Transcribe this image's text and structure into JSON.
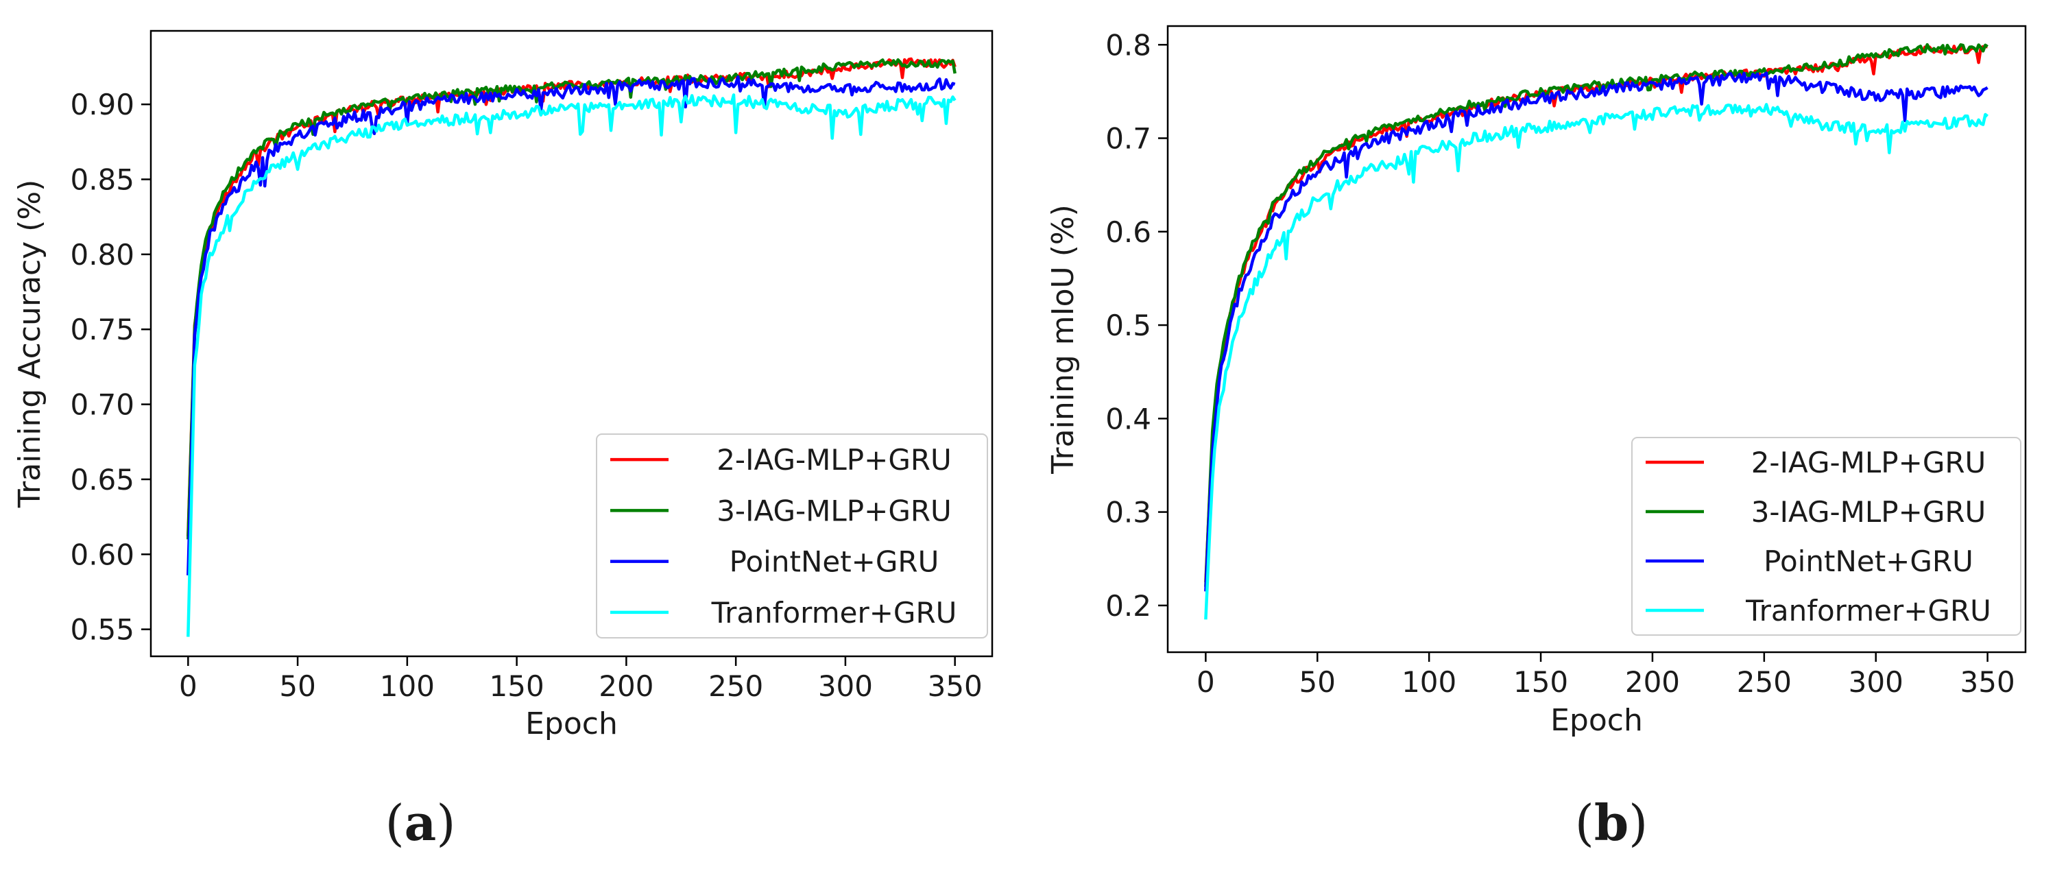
{
  "chart_data": [
    {
      "type": "line",
      "panel_label": "a",
      "panel_label_open": "(",
      "panel_label_close": ")",
      "xlabel": "Epoch",
      "ylabel": "Training Accuracy (%)",
      "xlim": [
        -17,
        367
      ],
      "ylim": [
        0.532,
        0.949
      ],
      "xticks": [
        0,
        50,
        100,
        150,
        200,
        250,
        300,
        350
      ],
      "yticks": [
        0.55,
        0.6,
        0.65,
        0.7,
        0.75,
        0.8,
        0.85,
        0.9
      ],
      "ytick_labels": [
        "0.55",
        "0.60",
        "0.65",
        "0.70",
        "0.75",
        "0.80",
        "0.85",
        "0.90"
      ],
      "legend_position": "lower-right",
      "series": [
        {
          "name": "2-IAG-MLP+GRU",
          "color": "#ff0000",
          "x": [
            0,
            3,
            6,
            10,
            15,
            20,
            30,
            40,
            50,
            60,
            75,
            90,
            100,
            120,
            150,
            175,
            200,
            225,
            250,
            275,
            300,
            325,
            350
          ],
          "y": [
            0.612,
            0.752,
            0.792,
            0.818,
            0.835,
            0.846,
            0.866,
            0.877,
            0.884,
            0.89,
            0.897,
            0.901,
            0.903,
            0.906,
            0.91,
            0.913,
            0.915,
            0.917,
            0.918,
            0.92,
            0.924,
            0.928,
            0.927
          ]
        },
        {
          "name": "3-IAG-MLP+GRU",
          "color": "#008000",
          "x": [
            0,
            3,
            6,
            10,
            15,
            20,
            30,
            40,
            50,
            60,
            75,
            90,
            100,
            120,
            150,
            175,
            200,
            225,
            250,
            275,
            300,
            325,
            350
          ],
          "y": [
            0.61,
            0.75,
            0.795,
            0.82,
            0.838,
            0.85,
            0.868,
            0.879,
            0.886,
            0.892,
            0.898,
            0.902,
            0.904,
            0.907,
            0.911,
            0.913,
            0.915,
            0.917,
            0.918,
            0.922,
            0.926,
            0.928,
            0.927
          ]
        },
        {
          "name": "PointNet+GRU",
          "color": "#0000ff",
          "x": [
            0,
            3,
            6,
            10,
            15,
            20,
            30,
            40,
            50,
            60,
            75,
            90,
            100,
            120,
            150,
            175,
            200,
            225,
            250,
            275,
            300,
            325,
            350
          ],
          "y": [
            0.586,
            0.745,
            0.786,
            0.812,
            0.828,
            0.84,
            0.858,
            0.87,
            0.878,
            0.884,
            0.891,
            0.896,
            0.899,
            0.903,
            0.907,
            0.91,
            0.912,
            0.914,
            0.915,
            0.912,
            0.91,
            0.912,
            0.914
          ]
        },
        {
          "name": "Tranformer+GRU",
          "color": "#00ffff",
          "x": [
            0,
            3,
            6,
            10,
            15,
            20,
            30,
            40,
            50,
            60,
            75,
            90,
            100,
            120,
            150,
            175,
            200,
            225,
            250,
            275,
            300,
            325,
            350
          ],
          "y": [
            0.545,
            0.725,
            0.772,
            0.798,
            0.815,
            0.828,
            0.847,
            0.858,
            0.866,
            0.872,
            0.879,
            0.884,
            0.887,
            0.89,
            0.894,
            0.897,
            0.9,
            0.902,
            0.903,
            0.898,
            0.895,
            0.9,
            0.902
          ]
        }
      ]
    },
    {
      "type": "line",
      "panel_label": "b",
      "panel_label_open": "(",
      "panel_label_close": ")",
      "xlabel": "Epoch",
      "ylabel": "Training mIoU (%)",
      "xlim": [
        -17,
        367
      ],
      "ylim": [
        0.15,
        0.82
      ],
      "xticks": [
        0,
        50,
        100,
        150,
        200,
        250,
        300,
        350
      ],
      "yticks": [
        0.2,
        0.3,
        0.4,
        0.5,
        0.6,
        0.7,
        0.8
      ],
      "ytick_labels": [
        "0.2",
        "0.3",
        "0.4",
        "0.5",
        "0.6",
        "0.7",
        "0.8"
      ],
      "legend_position": "lower-right",
      "series": [
        {
          "name": "2-IAG-MLP+GRU",
          "color": "#ff0000",
          "x": [
            0,
            3,
            6,
            10,
            15,
            20,
            30,
            40,
            50,
            60,
            75,
            90,
            100,
            120,
            150,
            175,
            200,
            225,
            250,
            275,
            300,
            325,
            350
          ],
          "y": [
            0.225,
            0.38,
            0.45,
            0.5,
            0.545,
            0.578,
            0.625,
            0.655,
            0.675,
            0.69,
            0.705,
            0.715,
            0.722,
            0.735,
            0.748,
            0.755,
            0.762,
            0.767,
            0.77,
            0.775,
            0.787,
            0.795,
            0.795
          ]
        },
        {
          "name": "3-IAG-MLP+GRU",
          "color": "#008000",
          "x": [
            0,
            3,
            6,
            10,
            15,
            20,
            30,
            40,
            50,
            60,
            75,
            90,
            100,
            120,
            150,
            175,
            200,
            225,
            250,
            275,
            300,
            325,
            350
          ],
          "y": [
            0.22,
            0.39,
            0.455,
            0.505,
            0.55,
            0.582,
            0.628,
            0.658,
            0.678,
            0.692,
            0.707,
            0.717,
            0.724,
            0.737,
            0.75,
            0.757,
            0.763,
            0.768,
            0.771,
            0.777,
            0.789,
            0.797,
            0.796
          ]
        },
        {
          "name": "PointNet+GRU",
          "color": "#0000ff",
          "x": [
            0,
            3,
            6,
            10,
            15,
            20,
            30,
            40,
            50,
            60,
            75,
            90,
            100,
            120,
            150,
            175,
            200,
            225,
            250,
            275,
            300,
            325,
            350
          ],
          "y": [
            0.215,
            0.37,
            0.44,
            0.49,
            0.535,
            0.565,
            0.61,
            0.642,
            0.663,
            0.678,
            0.695,
            0.706,
            0.714,
            0.728,
            0.742,
            0.75,
            0.757,
            0.762,
            0.765,
            0.755,
            0.745,
            0.748,
            0.752
          ]
        },
        {
          "name": "Tranformer+GRU",
          "color": "#00ffff",
          "x": [
            0,
            3,
            6,
            10,
            15,
            20,
            30,
            40,
            50,
            60,
            75,
            90,
            100,
            120,
            150,
            175,
            200,
            225,
            250,
            275,
            300,
            325,
            350
          ],
          "y": [
            0.185,
            0.34,
            0.41,
            0.46,
            0.505,
            0.535,
            0.58,
            0.612,
            0.635,
            0.65,
            0.668,
            0.68,
            0.688,
            0.7,
            0.712,
            0.72,
            0.726,
            0.73,
            0.733,
            0.715,
            0.708,
            0.715,
            0.72
          ]
        }
      ]
    }
  ]
}
